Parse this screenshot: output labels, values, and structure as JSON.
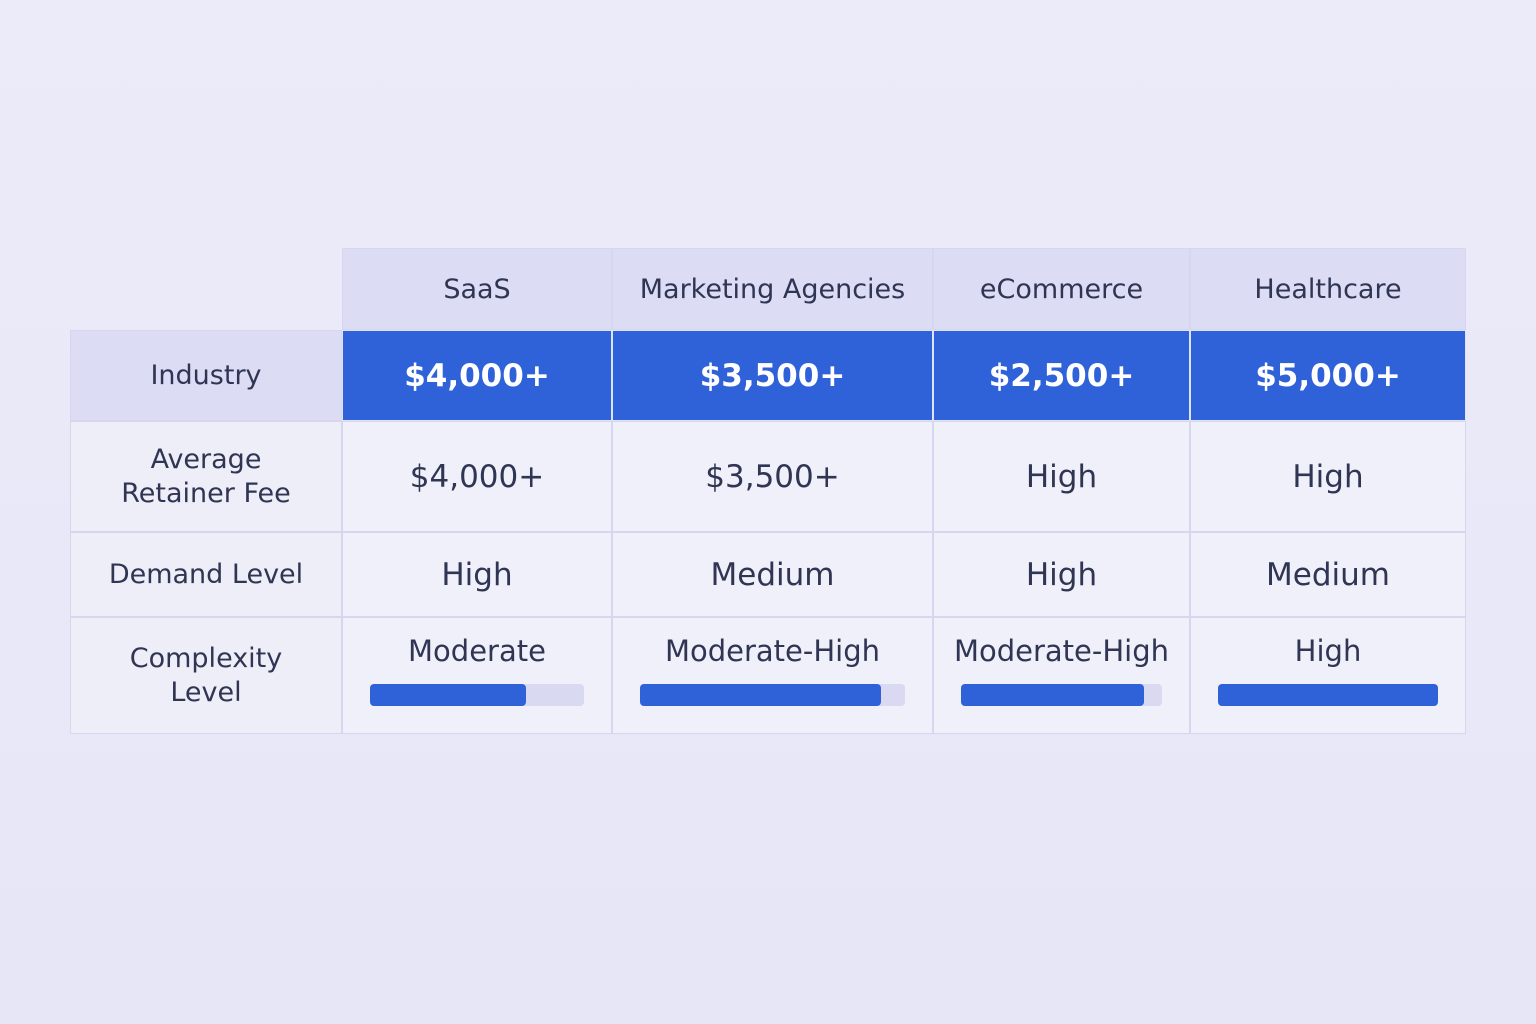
{
  "table": {
    "columns": [
      "SaaS",
      "Marketing Agencies",
      "eCommerce",
      "Healthcare"
    ],
    "rows": [
      {
        "label": "Industry",
        "cells": [
          "$4,000+",
          "$3,500+",
          "$2,500+",
          "$5,000+"
        ]
      },
      {
        "label": "Average Retainer Fee",
        "cells": [
          "$4,000+",
          "$3,500+",
          "High",
          "High"
        ]
      },
      {
        "label": "Demand Level",
        "cells": [
          "High",
          "Medium",
          "High",
          "Medium"
        ]
      },
      {
        "label": "Complexity Level",
        "cells": [
          "Moderate",
          "Moderate-High",
          "Moderate-High",
          "High"
        ],
        "bars": [
          73,
          91,
          91,
          100
        ]
      }
    ]
  }
}
